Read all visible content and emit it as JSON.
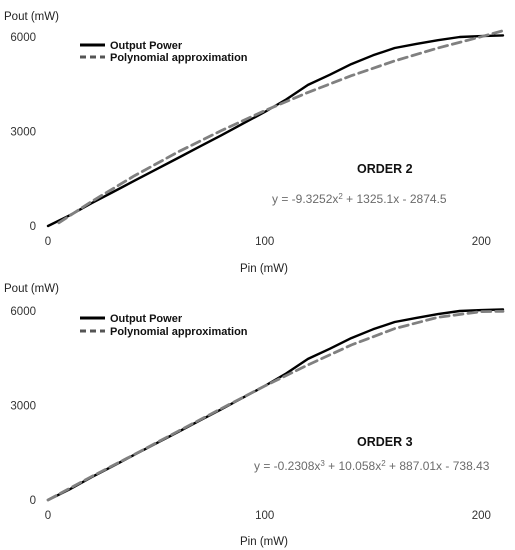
{
  "chart_data": [
    {
      "type": "line",
      "ylabel": "Pout (mW)",
      "xlabel": "Pin (mW)",
      "xlim": [
        0,
        210
      ],
      "ylim": [
        0,
        6000
      ],
      "xticks": [
        {
          "value": 0,
          "label": "0"
        },
        {
          "value": 100,
          "label": "100"
        },
        {
          "value": 200,
          "label": "200"
        }
      ],
      "yticks": [
        {
          "value": 0,
          "label": "0"
        },
        {
          "value": 3000,
          "label": "3000"
        },
        {
          "value": 6000,
          "label": "6000"
        }
      ],
      "legend": {
        "position": "top-left",
        "entries": [
          "Output Power",
          "Polynomial approximation"
        ]
      },
      "annotation_title": "ORDER 2",
      "equation": {
        "lead": "y = -9.3252x",
        "sup": "2",
        "rest": " + 1325.1x - 2874.5"
      },
      "series": [
        {
          "name": "Output Power",
          "style": "solid",
          "color": "#000000",
          "x": [
            0,
            10,
            20,
            30,
            40,
            50,
            60,
            70,
            80,
            90,
            100,
            110,
            120,
            130,
            140,
            150,
            160,
            170,
            180,
            190,
            200,
            210
          ],
          "y": [
            0,
            340,
            720,
            1080,
            1440,
            1800,
            2160,
            2520,
            2880,
            3250,
            3620,
            4020,
            4480,
            4800,
            5140,
            5420,
            5650,
            5780,
            5900,
            6000,
            6030,
            6050
          ]
        },
        {
          "name": "Polynomial approximation",
          "style": "dashed",
          "color": "#808080",
          "x": [
            5,
            20,
            40,
            60,
            80,
            100,
            120,
            140,
            160,
            180,
            200,
            210
          ],
          "y": [
            100,
            770,
            1600,
            2350,
            3030,
            3660,
            4240,
            4770,
            5240,
            5650,
            6010,
            6200
          ]
        }
      ]
    },
    {
      "type": "line",
      "ylabel": "Pout (mW)",
      "xlabel": "Pin (mW)",
      "xlim": [
        0,
        210
      ],
      "ylim": [
        0,
        6000
      ],
      "xticks": [
        {
          "value": 0,
          "label": "0"
        },
        {
          "value": 100,
          "label": "100"
        },
        {
          "value": 200,
          "label": "200"
        }
      ],
      "yticks": [
        {
          "value": 0,
          "label": "0"
        },
        {
          "value": 3000,
          "label": "3000"
        },
        {
          "value": 6000,
          "label": "6000"
        }
      ],
      "legend": {
        "position": "top-left",
        "entries": [
          "Output Power",
          "Polynomial approximation"
        ]
      },
      "annotation_title": "ORDER 3",
      "equation": {
        "lead": "y = -0.2308x",
        "sup": "3",
        "mid": " + 10.058x",
        "sup2": "2",
        "rest": " + 887.01x - 738.43"
      },
      "series": [
        {
          "name": "Output Power",
          "style": "solid",
          "color": "#000000",
          "x": [
            0,
            10,
            20,
            30,
            40,
            50,
            60,
            70,
            80,
            90,
            100,
            110,
            120,
            130,
            140,
            150,
            160,
            170,
            180,
            190,
            200,
            210
          ],
          "y": [
            0,
            340,
            720,
            1080,
            1440,
            1800,
            2160,
            2520,
            2880,
            3250,
            3620,
            4020,
            4480,
            4800,
            5140,
            5420,
            5650,
            5780,
            5900,
            6000,
            6030,
            6050
          ]
        },
        {
          "name": "Polynomial approximation",
          "style": "dashed",
          "color": "#808080",
          "x": [
            0,
            20,
            40,
            60,
            80,
            100,
            120,
            140,
            160,
            180,
            200,
            210
          ],
          "y": [
            0,
            740,
            1450,
            2180,
            2900,
            3620,
            4290,
            4920,
            5440,
            5800,
            5980,
            5990
          ]
        }
      ]
    }
  ]
}
